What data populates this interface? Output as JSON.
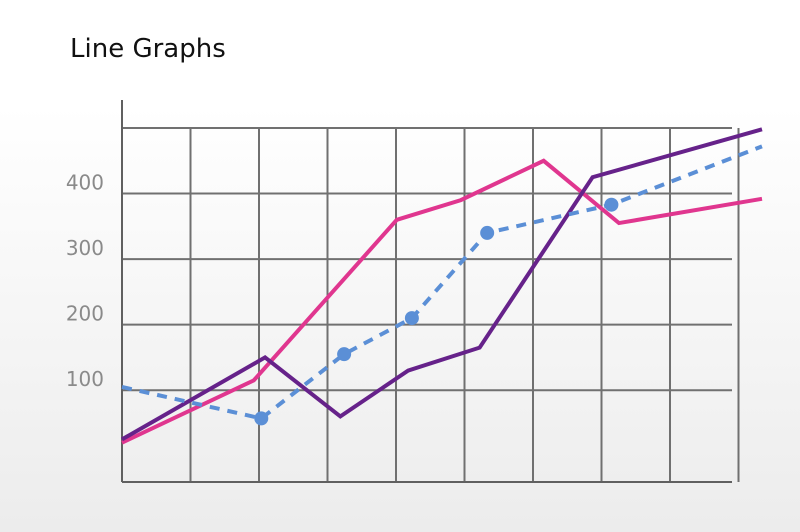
{
  "chart_data": {
    "type": "line",
    "title": "Line Graphs",
    "xlabel": "",
    "ylabel": "",
    "yticks": [
      100,
      200,
      300,
      400
    ],
    "ylim": [
      -40,
      500
    ],
    "xlim": [
      0,
      9
    ],
    "grid": true,
    "colors": {
      "magenta": "#e0368f",
      "purple": "#66228a",
      "blue": "#5b8fd6",
      "grid": "#707070",
      "axis": "#606060",
      "tick_label": "#8a8a8a"
    },
    "series": [
      {
        "color": "#e0368f",
        "style": "solid",
        "points": [
          [
            0,
            20
          ],
          [
            1.75,
            115
          ],
          [
            3.65,
            360
          ],
          [
            4.5,
            390
          ],
          [
            5.6,
            450
          ],
          [
            6.6,
            355
          ],
          [
            8.5,
            392
          ]
        ]
      },
      {
        "color": "#66228a",
        "style": "solid",
        "points": [
          [
            0,
            25
          ],
          [
            1.9,
            150
          ],
          [
            2.9,
            60
          ],
          [
            3.8,
            130
          ],
          [
            4.75,
            165
          ],
          [
            6.25,
            425
          ],
          [
            8.5,
            498
          ]
        ]
      },
      {
        "color": "#5b8fd6",
        "style": "dashed",
        "points": [
          [
            0,
            105
          ],
          [
            1.85,
            57
          ],
          [
            2.95,
            155
          ],
          [
            3.85,
            210
          ],
          [
            4.85,
            340
          ],
          [
            6.5,
            383
          ],
          [
            8.5,
            472
          ]
        ],
        "markers": [
          [
            1.85,
            57
          ],
          [
            2.95,
            155
          ],
          [
            3.85,
            210
          ],
          [
            4.85,
            340
          ],
          [
            6.5,
            383
          ]
        ]
      }
    ]
  }
}
